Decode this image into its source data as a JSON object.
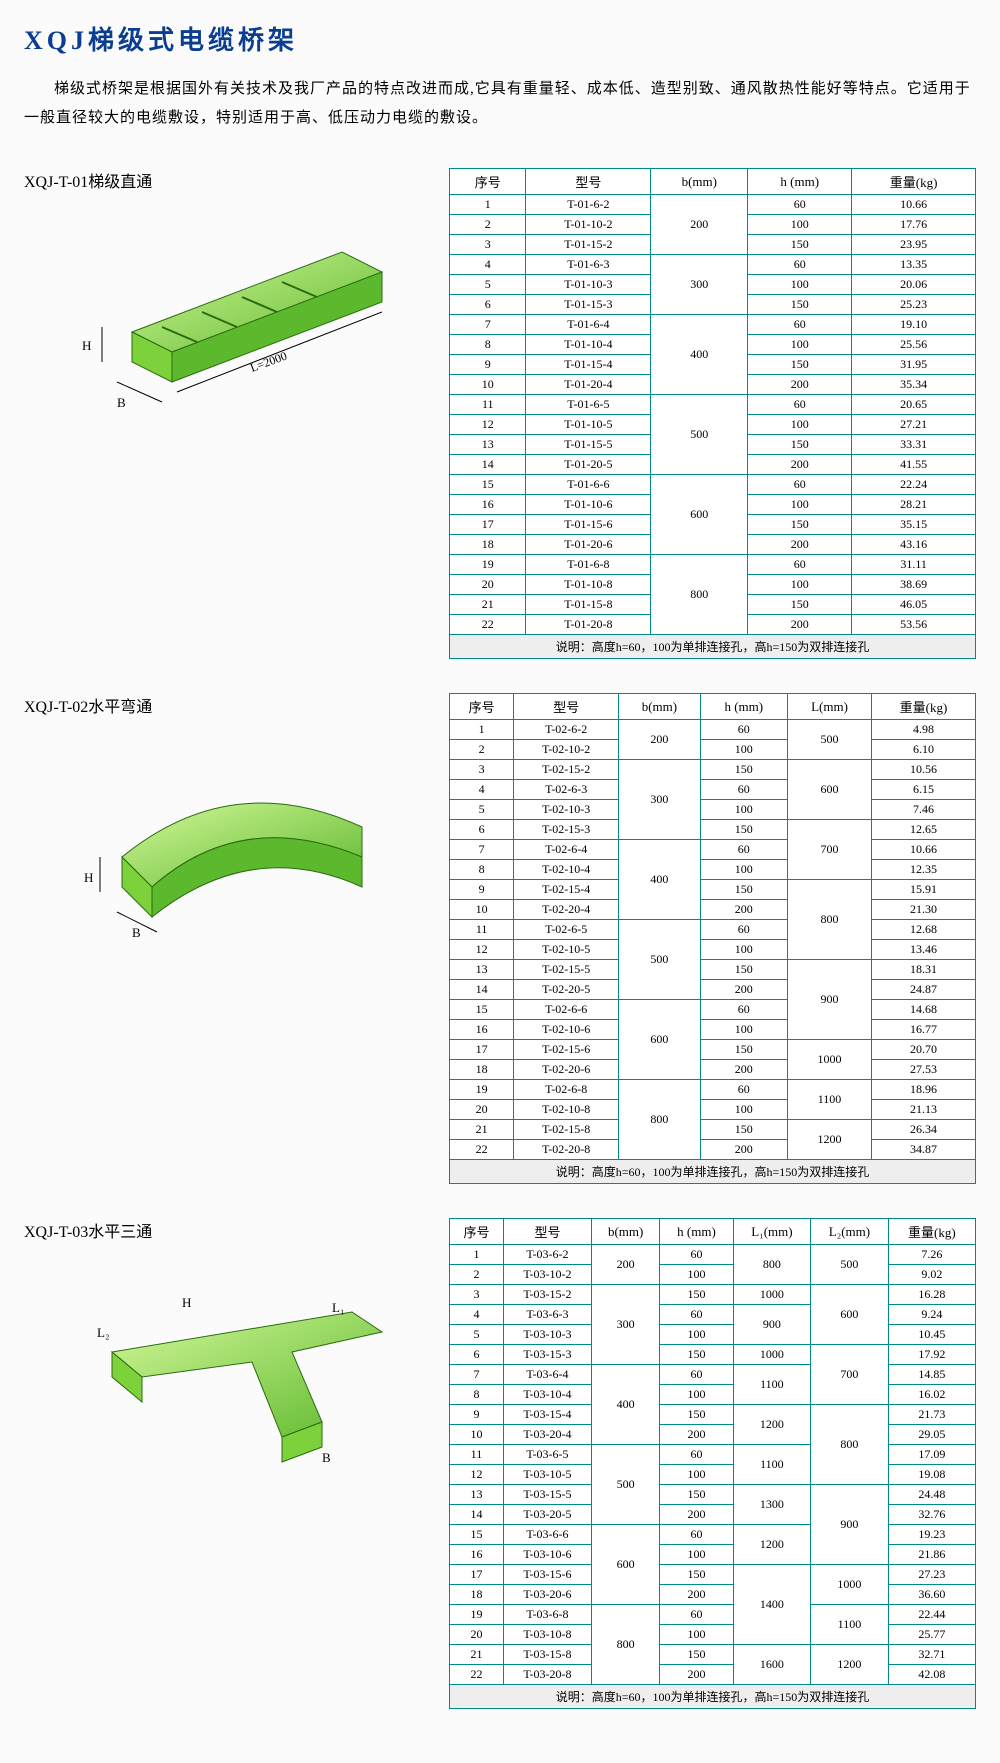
{
  "title": "XQJ梯级式电缆桥架",
  "description": "梯级式桥架是根据国外有关技术及我厂产品的特点改进而成,它具有重量轻、成本低、造型别致、通风散热性能好等特点。它适用于一般直径较大的电缆敷设，特别适用于高、低压动力电缆的敷设。",
  "note_text": "说明：高度h=60，100为单排连接孔，高h=150为双排连接孔",
  "sections": {
    "t01": {
      "title": "XQJ-T-01梯级直通",
      "diagram_label": "L=2000",
      "dims": [
        "H",
        "B"
      ],
      "headers": [
        "序号",
        "型号",
        "b(mm)",
        "h (mm)",
        "重量(kg)"
      ],
      "groups": [
        {
          "b": "200",
          "rows": [
            {
              "n": "1",
              "m": "T-01-6-2",
              "h": "60",
              "w": "10.66"
            },
            {
              "n": "2",
              "m": "T-01-10-2",
              "h": "100",
              "w": "17.76"
            },
            {
              "n": "3",
              "m": "T-01-15-2",
              "h": "150",
              "w": "23.95"
            }
          ]
        },
        {
          "b": "300",
          "rows": [
            {
              "n": "4",
              "m": "T-01-6-3",
              "h": "60",
              "w": "13.35"
            },
            {
              "n": "5",
              "m": "T-01-10-3",
              "h": "100",
              "w": "20.06"
            },
            {
              "n": "6",
              "m": "T-01-15-3",
              "h": "150",
              "w": "25.23"
            }
          ]
        },
        {
          "b": "400",
          "rows": [
            {
              "n": "7",
              "m": "T-01-6-4",
              "h": "60",
              "w": "19.10"
            },
            {
              "n": "8",
              "m": "T-01-10-4",
              "h": "100",
              "w": "25.56"
            },
            {
              "n": "9",
              "m": "T-01-15-4",
              "h": "150",
              "w": "31.95"
            },
            {
              "n": "10",
              "m": "T-01-20-4",
              "h": "200",
              "w": "35.34"
            }
          ]
        },
        {
          "b": "500",
          "rows": [
            {
              "n": "11",
              "m": "T-01-6-5",
              "h": "60",
              "w": "20.65"
            },
            {
              "n": "12",
              "m": "T-01-10-5",
              "h": "100",
              "w": "27.21"
            },
            {
              "n": "13",
              "m": "T-01-15-5",
              "h": "150",
              "w": "33.31"
            },
            {
              "n": "14",
              "m": "T-01-20-5",
              "h": "200",
              "w": "41.55"
            }
          ]
        },
        {
          "b": "600",
          "rows": [
            {
              "n": "15",
              "m": "T-01-6-6",
              "h": "60",
              "w": "22.24"
            },
            {
              "n": "16",
              "m": "T-01-10-6",
              "h": "100",
              "w": "28.21"
            },
            {
              "n": "17",
              "m": "T-01-15-6",
              "h": "150",
              "w": "35.15"
            },
            {
              "n": "18",
              "m": "T-01-20-6",
              "h": "200",
              "w": "43.16"
            }
          ]
        },
        {
          "b": "800",
          "rows": [
            {
              "n": "19",
              "m": "T-01-6-8",
              "h": "60",
              "w": "31.11"
            },
            {
              "n": "20",
              "m": "T-01-10-8",
              "h": "100",
              "w": "38.69"
            },
            {
              "n": "21",
              "m": "T-01-15-8",
              "h": "150",
              "w": "46.05"
            },
            {
              "n": "22",
              "m": "T-01-20-8",
              "h": "200",
              "w": "53.56"
            }
          ]
        }
      ]
    },
    "t02": {
      "title": "XQJ-T-02水平弯通",
      "dims": [
        "H",
        "B"
      ],
      "headers": [
        "序号",
        "型号",
        "b(mm)",
        "h (mm)",
        "L(mm)",
        "重量(kg)"
      ],
      "groups": [
        {
          "b": "200",
          "L": [
            {
              "v": "500",
              "s": 2
            }
          ],
          "rows": [
            {
              "n": "1",
              "m": "T-02-6-2",
              "h": "60",
              "w": "4.98"
            },
            {
              "n": "2",
              "m": "T-02-10-2",
              "h": "100",
              "w": "6.10"
            }
          ]
        },
        {
          "b": "300",
          "L": [
            {
              "v": "600",
              "s": 2,
              "pre": 1
            }
          ],
          "rows": [
            {
              "n": "3",
              "m": "T-02-15-2",
              "h": "150",
              "w": "10.56"
            },
            {
              "n": "4",
              "m": "T-02-6-3",
              "h": "60",
              "w": "6.15"
            },
            {
              "n": "5",
              "m": "T-02-10-3",
              "h": "100",
              "w": "7.46"
            },
            {
              "n": "6",
              "m": "T-02-15-3",
              "h": "150",
              "w": "12.65"
            }
          ]
        },
        {
          "b": "400",
          "rows": [
            {
              "n": "7",
              "m": "T-02-6-4",
              "h": "60",
              "w": "10.66"
            },
            {
              "n": "8",
              "m": "T-02-10-4",
              "h": "100",
              "w": "12.35"
            },
            {
              "n": "9",
              "m": "T-02-15-4",
              "h": "150",
              "w": "15.91"
            },
            {
              "n": "10",
              "m": "T-02-20-4",
              "h": "200",
              "w": "21.30"
            }
          ]
        },
        {
          "b": "500",
          "rows": [
            {
              "n": "11",
              "m": "T-02-6-5",
              "h": "60",
              "w": "12.68"
            },
            {
              "n": "12",
              "m": "T-02-10-5",
              "h": "100",
              "w": "13.46"
            },
            {
              "n": "13",
              "m": "T-02-15-5",
              "h": "150",
              "w": "18.31"
            },
            {
              "n": "14",
              "m": "T-02-20-5",
              "h": "200",
              "w": "24.87"
            }
          ]
        },
        {
          "b": "600",
          "rows": [
            {
              "n": "15",
              "m": "T-02-6-6",
              "h": "60",
              "w": "14.68"
            },
            {
              "n": "16",
              "m": "T-02-10-6",
              "h": "100",
              "w": "16.77"
            },
            {
              "n": "17",
              "m": "T-02-15-6",
              "h": "150",
              "w": "20.70"
            },
            {
              "n": "18",
              "m": "T-02-20-6",
              "h": "200",
              "w": "27.53"
            }
          ]
        },
        {
          "b": "800",
          "rows": [
            {
              "n": "19",
              "m": "T-02-6-8",
              "h": "60",
              "w": "18.96"
            },
            {
              "n": "20",
              "m": "T-02-10-8",
              "h": "100",
              "w": "21.13"
            },
            {
              "n": "21",
              "m": "T-02-15-8",
              "h": "150",
              "w": "26.34"
            },
            {
              "n": "22",
              "m": "T-02-20-8",
              "h": "200",
              "w": "34.87"
            }
          ]
        }
      ],
      "L_spans": [
        {
          "v": "500",
          "rows": [
            0,
            1
          ]
        },
        {
          "v": "600",
          "rows": [
            2,
            3,
            4
          ]
        },
        {
          "v": "700",
          "rows": [
            5,
            6,
            7
          ]
        },
        {
          "v": "800",
          "rows": [
            8,
            9,
            10,
            11
          ]
        },
        {
          "v": "900",
          "rows": [
            12,
            13,
            14,
            15
          ]
        },
        {
          "v": "1000",
          "rows": [
            16,
            17
          ]
        },
        {
          "v": "1100",
          "rows": [
            18,
            19
          ]
        },
        {
          "v": "1200",
          "rows": [
            20,
            21
          ]
        }
      ]
    },
    "t03": {
      "title": "XQJ-T-03水平三通",
      "dims": [
        "H",
        "B",
        "L₁",
        "L₂"
      ],
      "headers": [
        "序号",
        "型号",
        "b(mm)",
        "h (mm)",
        "L₁(mm)",
        "L₂(mm)",
        "重量(kg)"
      ],
      "b_groups": [
        {
          "b": "200",
          "rows": [
            0,
            1
          ]
        },
        {
          "b": "300",
          "rows": [
            2,
            3,
            4,
            5
          ]
        },
        {
          "b": "400",
          "rows": [
            6,
            7,
            8,
            9
          ]
        },
        {
          "b": "500",
          "rows": [
            10,
            11,
            12,
            13
          ]
        },
        {
          "b": "600",
          "rows": [
            14,
            15,
            16,
            17
          ]
        },
        {
          "b": "800",
          "rows": [
            18,
            19,
            20,
            21
          ]
        }
      ],
      "L1_spans": [
        {
          "v": "800",
          "rows": [
            0,
            1
          ]
        },
        {
          "v": "1000",
          "rows": [
            2
          ]
        },
        {
          "v": "900",
          "rows": [
            3,
            4
          ]
        },
        {
          "v": "1000",
          "rows": [
            5
          ]
        },
        {
          "v": "1100",
          "rows": [
            6,
            7
          ]
        },
        {
          "v": "1200",
          "rows": [
            8,
            9
          ]
        },
        {
          "v": "1100",
          "rows": [
            10,
            11
          ]
        },
        {
          "v": "1300",
          "rows": [
            12,
            13
          ]
        },
        {
          "v": "1200",
          "rows": [
            14,
            15
          ]
        },
        {
          "v": "1400",
          "rows": [
            16,
            17,
            18,
            19
          ]
        },
        {
          "v": "1600",
          "rows": [
            20,
            21
          ]
        }
      ],
      "L2_spans": [
        {
          "v": "500",
          "rows": [
            0,
            1
          ]
        },
        {
          "v": "600",
          "rows": [
            2,
            3,
            4
          ]
        },
        {
          "v": "700",
          "rows": [
            5,
            6,
            7
          ]
        },
        {
          "v": "800",
          "rows": [
            8,
            9,
            10,
            11
          ]
        },
        {
          "v": "900",
          "rows": [
            12,
            13,
            14,
            15
          ]
        },
        {
          "v": "1000",
          "rows": [
            16,
            17
          ]
        },
        {
          "v": "1100",
          "rows": [
            18,
            19
          ]
        },
        {
          "v": "1200",
          "rows": [
            20,
            21
          ]
        }
      ],
      "rows": [
        {
          "n": "1",
          "m": "T-03-6-2",
          "h": "60",
          "w": "7.26"
        },
        {
          "n": "2",
          "m": "T-03-10-2",
          "h": "100",
          "w": "9.02"
        },
        {
          "n": "3",
          "m": "T-03-15-2",
          "h": "150",
          "w": "16.28"
        },
        {
          "n": "4",
          "m": "T-03-6-3",
          "h": "60",
          "w": "9.24"
        },
        {
          "n": "5",
          "m": "T-03-10-3",
          "h": "100",
          "w": "10.45"
        },
        {
          "n": "6",
          "m": "T-03-15-3",
          "h": "150",
          "w": "17.92"
        },
        {
          "n": "7",
          "m": "T-03-6-4",
          "h": "60",
          "w": "14.85"
        },
        {
          "n": "8",
          "m": "T-03-10-4",
          "h": "100",
          "w": "16.02"
        },
        {
          "n": "9",
          "m": "T-03-15-4",
          "h": "150",
          "w": "21.73"
        },
        {
          "n": "10",
          "m": "T-03-20-4",
          "h": "200",
          "w": "29.05"
        },
        {
          "n": "11",
          "m": "T-03-6-5",
          "h": "60",
          "w": "17.09"
        },
        {
          "n": "12",
          "m": "T-03-10-5",
          "h": "100",
          "w": "19.08"
        },
        {
          "n": "13",
          "m": "T-03-15-5",
          "h": "150",
          "w": "24.48"
        },
        {
          "n": "14",
          "m": "T-03-20-5",
          "h": "200",
          "w": "32.76"
        },
        {
          "n": "15",
          "m": "T-03-6-6",
          "h": "60",
          "w": "19.23"
        },
        {
          "n": "16",
          "m": "T-03-10-6",
          "h": "100",
          "w": "21.86"
        },
        {
          "n": "17",
          "m": "T-03-15-6",
          "h": "150",
          "w": "27.23"
        },
        {
          "n": "18",
          "m": "T-03-20-6",
          "h": "200",
          "w": "36.60"
        },
        {
          "n": "19",
          "m": "T-03-6-8",
          "h": "60",
          "w": "22.44"
        },
        {
          "n": "20",
          "m": "T-03-10-8",
          "h": "100",
          "w": "25.77"
        },
        {
          "n": "21",
          "m": "T-03-15-8",
          "h": "150",
          "w": "32.71"
        },
        {
          "n": "22",
          "m": "T-03-20-8",
          "h": "200",
          "w": "42.08"
        }
      ]
    }
  },
  "colors": {
    "title": "#0b3d91",
    "border": "#008b8b",
    "tray_light": "#b8f060",
    "tray_dark": "#5cb82c",
    "outline": "#2a2a2a"
  }
}
